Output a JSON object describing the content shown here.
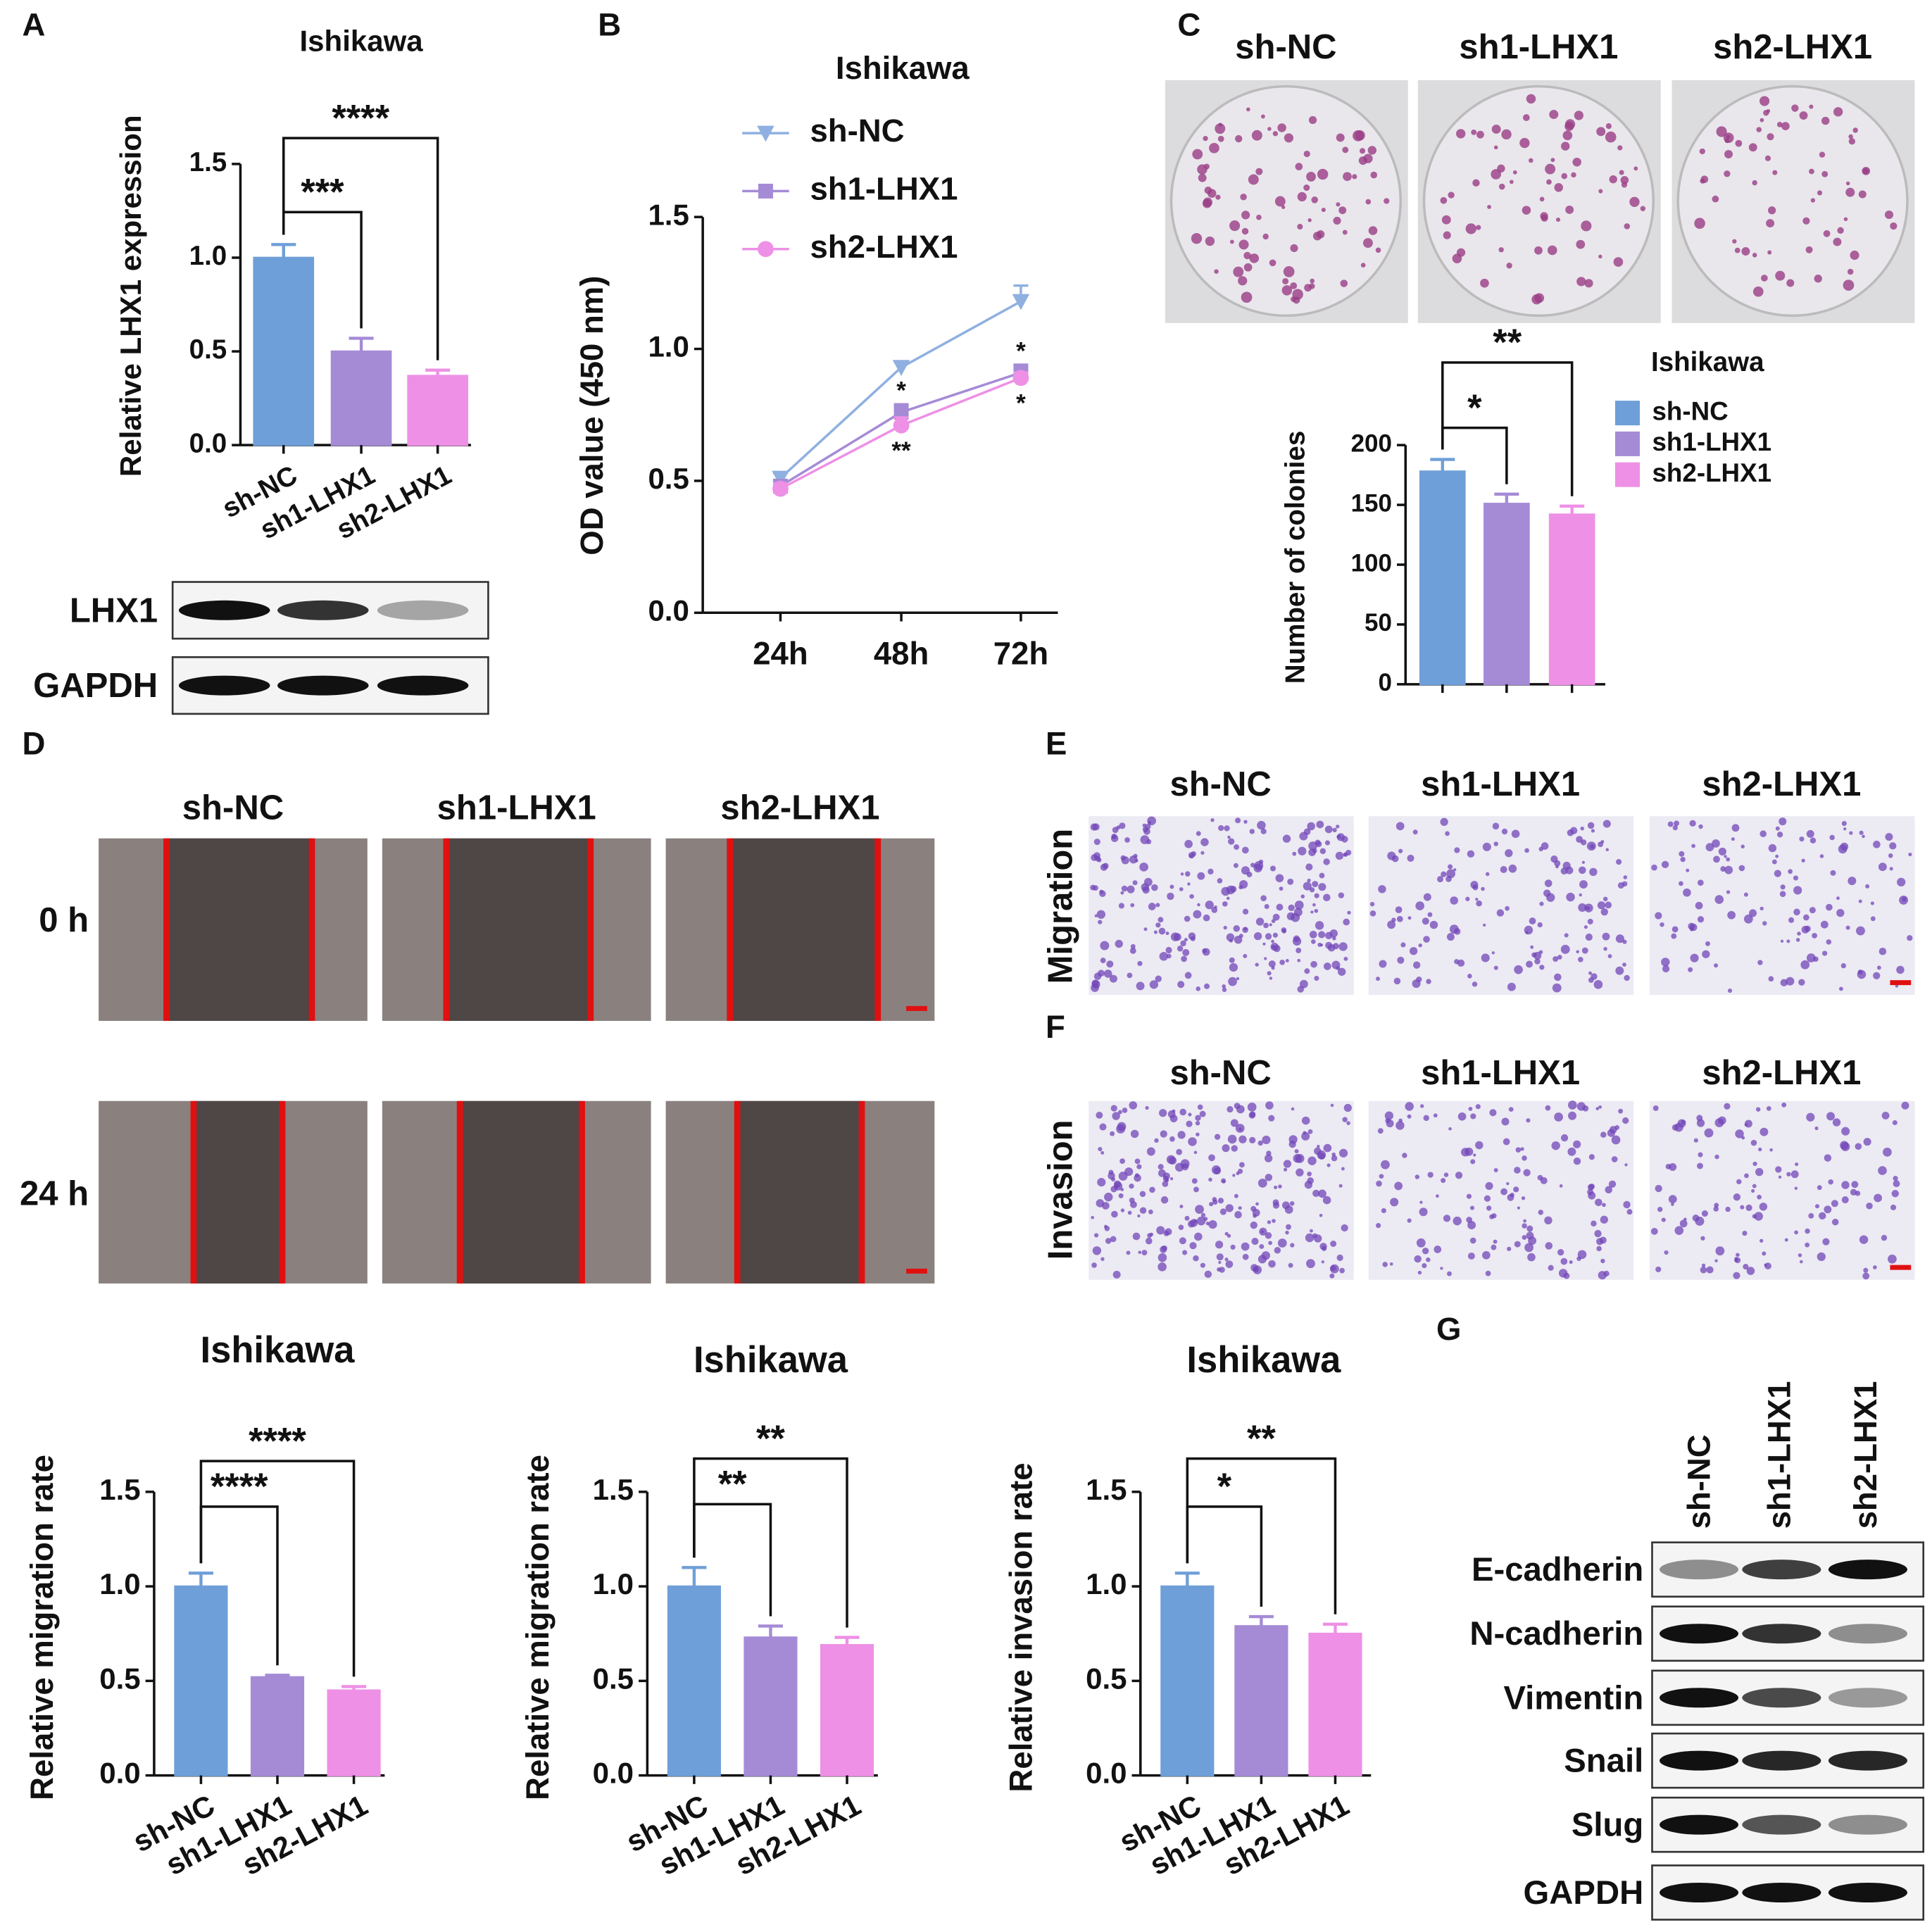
{
  "chart_data": [
    {
      "type": "bar",
      "panel": "A",
      "title": "Ishikawa",
      "y_label": "Relative LHX1 expression",
      "categories": [
        "sh-NC",
        "sh1-LHX1",
        "sh2-LHX1"
      ],
      "colors": [
        "#6f9fd8",
        "#a58bd6",
        "#ee90e6"
      ],
      "values": [
        1.0,
        0.5,
        0.37
      ],
      "errors": [
        0.07,
        0.07,
        0.03
      ],
      "ylim": [
        0,
        1.5
      ],
      "yticks": [
        {
          "value": 0,
          "label": "0.0"
        },
        0.5,
        {
          "value": 1,
          "label": "1.0"
        },
        1.5
      ],
      "comparisons": [
        {
          "groups": [
            "sh-NC",
            "sh1-LHX1"
          ],
          "label": "***"
        },
        {
          "groups": [
            "sh-NC",
            "sh2-LHX1"
          ],
          "label": "****"
        }
      ]
    },
    {
      "type": "line",
      "panel": "B",
      "title": "Ishikawa",
      "y_label": "OD value (450 nm)",
      "categories": [
        "24h",
        "48h",
        "72h"
      ],
      "series": [
        {
          "name": "sh-NC",
          "color": "#8fb0e0",
          "marker": "triangle",
          "values": [
            0.51,
            0.93,
            1.18
          ],
          "errors": [
            0.02,
            0.02,
            0.06
          ]
        },
        {
          "name": "sh1-LHX1",
          "color": "#a58bd6",
          "marker": "square",
          "values": [
            0.48,
            0.76,
            0.91
          ],
          "errors": [
            0.02,
            0.03,
            0.03
          ]
        },
        {
          "name": "sh2-LHX1",
          "color": "#ee90e6",
          "marker": "circle",
          "values": [
            0.47,
            0.71,
            0.89
          ],
          "errors": [
            0.02,
            0.03,
            0.02
          ]
        }
      ],
      "ylim": [
        0,
        1.5
      ],
      "yticks": [
        {
          "value": 0,
          "label": "0.0"
        },
        0.5,
        {
          "value": 1,
          "label": "1.0"
        },
        1.5
      ],
      "legend": "top-left",
      "annotations": [
        {
          "series": "sh1-LHX1",
          "category": "48h",
          "label": "*",
          "position": "above"
        },
        {
          "series": "sh2-LHX1",
          "category": "48h",
          "label": "**",
          "position": "below"
        },
        {
          "series": "sh1-LHX1",
          "category": "72h",
          "label": "*",
          "position": "above"
        },
        {
          "series": "sh2-LHX1",
          "category": "72h",
          "label": "*",
          "position": "below"
        }
      ]
    },
    {
      "type": "bar",
      "panel": "C",
      "title": "Ishikawa",
      "y_label": "Number of colonies",
      "categories": [
        "sh-NC",
        "sh1-LHX1",
        "sh2-LHX1"
      ],
      "colors": [
        "#6f9fd8",
        "#a58bd6",
        "#ee90e6"
      ],
      "values": [
        178,
        151,
        142
      ],
      "errors": [
        10,
        8,
        7
      ],
      "ylim": [
        0,
        200
      ],
      "yticks": [
        0,
        50,
        100,
        150,
        200
      ],
      "legend": "right",
      "comparisons": [
        {
          "groups": [
            "sh-NC",
            "sh1-LHX1"
          ],
          "label": "*"
        },
        {
          "groups": [
            "sh-NC",
            "sh2-LHX1"
          ],
          "label": "**"
        }
      ]
    },
    {
      "type": "bar",
      "title": "Ishikawa",
      "y_label": "Relative migration rate",
      "categories": [
        "sh-NC",
        "sh1-LHX1",
        "sh2-LHX1"
      ],
      "colors": [
        "#6f9fd8",
        "#a58bd6",
        "#ee90e6"
      ],
      "values": [
        1.0,
        0.52,
        0.45
      ],
      "errors": [
        0.07,
        0.01,
        0.02
      ],
      "ylim": [
        0,
        1.5
      ],
      "yticks": [
        {
          "value": 0,
          "label": "0.0"
        },
        0.5,
        {
          "value": 1,
          "label": "1.0"
        },
        1.5
      ],
      "comparisons": [
        {
          "groups": [
            "sh-NC",
            "sh1-LHX1"
          ],
          "label": "****"
        },
        {
          "groups": [
            "sh-NC",
            "sh2-LHX1"
          ],
          "label": "****"
        }
      ]
    },
    {
      "type": "bar",
      "title": "Ishikawa",
      "y_label": "Relative migration rate",
      "categories": [
        "sh-NC",
        "sh1-LHX1",
        "sh2-LHX1"
      ],
      "colors": [
        "#6f9fd8",
        "#a58bd6",
        "#ee90e6"
      ],
      "values": [
        1.0,
        0.73,
        0.69
      ],
      "errors": [
        0.1,
        0.06,
        0.04
      ],
      "ylim": [
        0,
        1.5
      ],
      "yticks": [
        {
          "value": 0,
          "label": "0.0"
        },
        0.5,
        {
          "value": 1,
          "label": "1.0"
        },
        1.5
      ],
      "comparisons": [
        {
          "groups": [
            "sh-NC",
            "sh1-LHX1"
          ],
          "label": "**"
        },
        {
          "groups": [
            "sh-NC",
            "sh2-LHX1"
          ],
          "label": "**"
        }
      ]
    },
    {
      "type": "bar",
      "title": "Ishikawa",
      "y_label": "Relative invasion rate",
      "categories": [
        "sh-NC",
        "sh1-LHX1",
        "sh2-LHX1"
      ],
      "colors": [
        "#6f9fd8",
        "#a58bd6",
        "#ee90e6"
      ],
      "values": [
        1.0,
        0.79,
        0.75
      ],
      "errors": [
        0.07,
        0.05,
        0.05
      ],
      "ylim": [
        0,
        1.5
      ],
      "yticks": [
        {
          "value": 0,
          "label": "0.0"
        },
        0.5,
        {
          "value": 1,
          "label": "1.0"
        },
        1.5
      ],
      "comparisons": [
        {
          "groups": [
            "sh-NC",
            "sh1-LHX1"
          ],
          "label": "*"
        },
        {
          "groups": [
            "sh-NC",
            "sh2-LHX1"
          ],
          "label": "**"
        }
      ]
    }
  ],
  "blot_A": {
    "rows": [
      "LHX1",
      "GAPDH"
    ]
  },
  "colony_C": {
    "columns": [
      "sh-NC",
      "sh1-LHX1",
      "sh2-LHX1"
    ]
  },
  "wound_D": {
    "panel": "D",
    "columns": [
      "sh-NC",
      "sh1-LHX1",
      "sh2-LHX1"
    ],
    "rows": [
      "0 h",
      "24 h"
    ]
  },
  "transwell_E": {
    "panel": "E",
    "columns": [
      "sh-NC",
      "sh1-LHX1",
      "sh2-LHX1"
    ],
    "row": "Migration"
  },
  "transwell_F": {
    "panel": "F",
    "columns": [
      "sh-NC",
      "sh1-LHX1",
      "sh2-LHX1"
    ],
    "row": "Invasion"
  },
  "blot_G": {
    "panel": "G",
    "columns": [
      "sh-NC",
      "sh1-LHX1",
      "sh2-LHX1"
    ],
    "rows": [
      "E-cadherin",
      "N-cadherin",
      "Vimentin",
      "Snail",
      "Slug",
      "GAPDH"
    ]
  }
}
